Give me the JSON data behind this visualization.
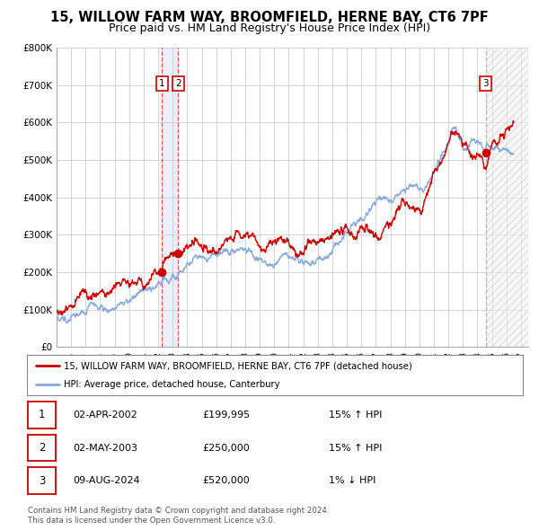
{
  "title": "15, WILLOW FARM WAY, BROOMFIELD, HERNE BAY, CT6 7PF",
  "subtitle": "Price paid vs. HM Land Registry's House Price Index (HPI)",
  "title_fontsize": 10.5,
  "subtitle_fontsize": 9,
  "ylim": [
    0,
    800000
  ],
  "yticks": [
    0,
    100000,
    200000,
    300000,
    400000,
    500000,
    600000,
    700000,
    800000
  ],
  "ytick_labels": [
    "£0",
    "£100K",
    "£200K",
    "£300K",
    "£400K",
    "£500K",
    "£600K",
    "£700K",
    "£800K"
  ],
  "xlim_start": 1995.0,
  "xlim_end": 2027.5,
  "xticks": [
    1995,
    1996,
    1997,
    1998,
    1999,
    2000,
    2001,
    2002,
    2003,
    2004,
    2005,
    2006,
    2007,
    2008,
    2009,
    2010,
    2011,
    2012,
    2013,
    2014,
    2015,
    2016,
    2017,
    2018,
    2019,
    2020,
    2021,
    2022,
    2023,
    2024,
    2025,
    2026,
    2027
  ],
  "background_color": "#ffffff",
  "grid_color": "#cccccc",
  "property_line_color": "#cc0000",
  "hpi_line_color": "#88aadd",
  "marker_color": "#cc0000",
  "sale1_x": 2002.25,
  "sale1_y": 199995,
  "sale2_x": 2003.37,
  "sale2_y": 250000,
  "sale3_x": 2024.58,
  "sale3_y": 520000,
  "vline1_x": 2002.25,
  "vline2_x": 2003.37,
  "vline3_x": 2024.58,
  "vline_color": "#dd3333",
  "vline3_color": "#aaaaaa",
  "vshade1_xmin": 2002.25,
  "vshade1_xmax": 2003.37,
  "vshade_color": "#bbccee",
  "vshade_alpha": 0.3,
  "legend_line1": "15, WILLOW FARM WAY, BROOMFIELD, HERNE BAY, CT6 7PF (detached house)",
  "legend_line2": "HPI: Average price, detached house, Canterbury",
  "sale_rows": [
    {
      "num": "1",
      "date": "02-APR-2002",
      "price": "£199,995",
      "hpi": "15% ↑ HPI"
    },
    {
      "num": "2",
      "date": "02-MAY-2003",
      "price": "£250,000",
      "hpi": "15% ↑ HPI"
    },
    {
      "num": "3",
      "date": "09-AUG-2024",
      "price": "£520,000",
      "hpi": "1% ↓ HPI"
    }
  ],
  "footer1": "Contains HM Land Registry data © Crown copyright and database right 2024.",
  "footer2": "This data is licensed under the Open Government Licence v3.0."
}
